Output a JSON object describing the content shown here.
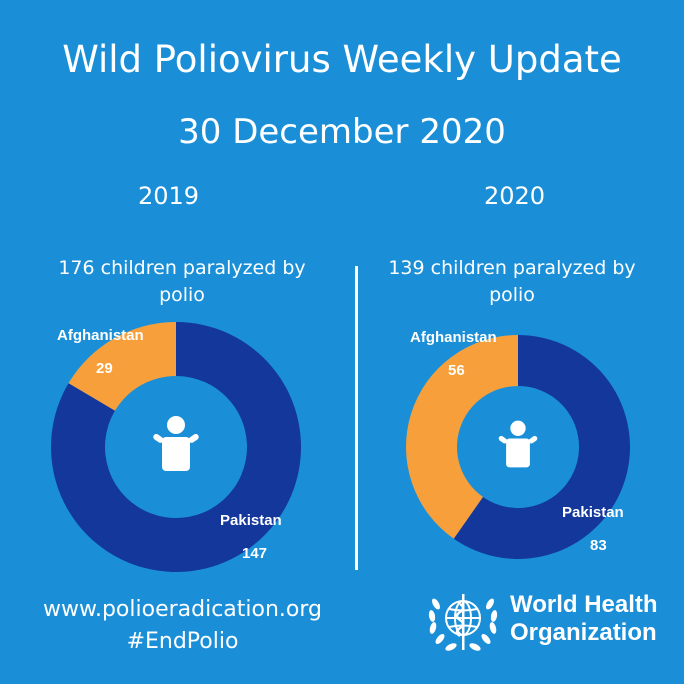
{
  "header": {
    "title": "Wild Poliovirus Weekly Update",
    "date": "30 December 2020"
  },
  "chart_data": [
    {
      "type": "pie",
      "donut": true,
      "title": "2019",
      "subtitle": "176 children paralyzed by polio",
      "categories": [
        "Afghanistan",
        "Pakistan"
      ],
      "values": [
        29,
        147
      ],
      "colors": [
        "#f7a03b",
        "#13379b"
      ]
    },
    {
      "type": "pie",
      "donut": true,
      "title": "2020",
      "subtitle": "139 children paralyzed by polio",
      "categories": [
        "Afghanistan",
        "Pakistan"
      ],
      "values": [
        56,
        83
      ],
      "colors": [
        "#f7a03b",
        "#13379b"
      ]
    }
  ],
  "footer": {
    "website": "www.polioeradication.org",
    "hashtag": "#EndPolio",
    "org_line1": "World Health",
    "org_line2": "Organization"
  },
  "colors": {
    "background": "#1a8fd8",
    "afghanistan": "#f7a03b",
    "pakistan": "#13379b",
    "text": "#ffffff"
  },
  "icons": {
    "center": "child-icon",
    "logo": "who-emblem-icon"
  }
}
